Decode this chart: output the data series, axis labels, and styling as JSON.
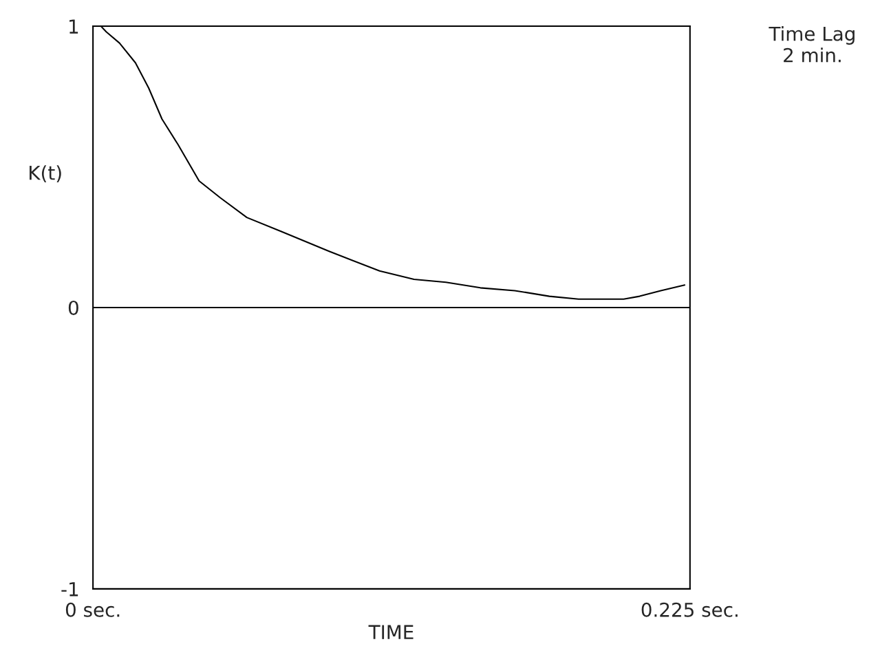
{
  "chart_data": {
    "type": "line",
    "xlabel": "TIME",
    "ylabel": "K(t)",
    "annotations": [
      "Time Lag\n2 min."
    ],
    "x": [
      0.003,
      0.005,
      0.01,
      0.016,
      0.021,
      0.026,
      0.032,
      0.04,
      0.048,
      0.058,
      0.071,
      0.089,
      0.108,
      0.121,
      0.133,
      0.146,
      0.159,
      0.172,
      0.183,
      0.193,
      0.2,
      0.206,
      0.214,
      0.223
    ],
    "series": [
      {
        "color": "#000000",
        "values": [
          1.0,
          0.98,
          0.94,
          0.87,
          0.78,
          0.67,
          0.58,
          0.45,
          0.39,
          0.32,
          0.27,
          0.2,
          0.13,
          0.1,
          0.09,
          0.07,
          0.06,
          0.04,
          0.03,
          0.03,
          0.03,
          0.04,
          0.06,
          0.08
        ]
      }
    ],
    "xlim": [
      0,
      0.225
    ],
    "ylim": [
      -1,
      1
    ],
    "xticks": [
      {
        "value": 0,
        "label": "0 sec."
      },
      {
        "value": 0.225,
        "label": "0.225 sec."
      }
    ],
    "yticks": [
      -1,
      0,
      1
    ],
    "ref_lines": [
      {
        "axis": "y",
        "value": 0,
        "color": "#000000"
      }
    ],
    "legend": false
  }
}
